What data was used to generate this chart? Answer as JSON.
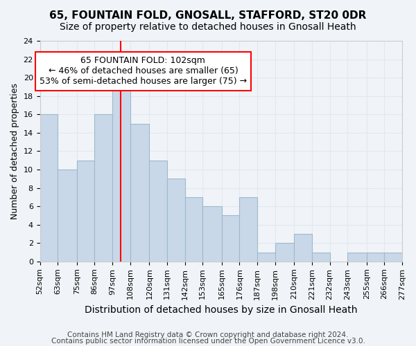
{
  "title": "65, FOUNTAIN FOLD, GNOSALL, STAFFORD, ST20 0DR",
  "subtitle": "Size of property relative to detached houses in Gnosall Heath",
  "xlabel": "Distribution of detached houses by size in Gnosall Heath",
  "ylabel": "Number of detached properties",
  "bin_edges": [
    52,
    63,
    75,
    86,
    97,
    108,
    120,
    131,
    142,
    153,
    165,
    176,
    187,
    198,
    210,
    221,
    232,
    243,
    255,
    266,
    277
  ],
  "bin_labels": [
    "52sqm",
    "63sqm",
    "75sqm",
    "86sqm",
    "97sqm",
    "108sqm",
    "120sqm",
    "131sqm",
    "142sqm",
    "153sqm",
    "165sqm",
    "176sqm",
    "187sqm",
    "198sqm",
    "210sqm",
    "221sqm",
    "232sqm",
    "243sqm",
    "255sqm",
    "266sqm",
    "277sqm"
  ],
  "counts": [
    16,
    10,
    11,
    16,
    20,
    15,
    11,
    9,
    7,
    6,
    5,
    7,
    1,
    2,
    3,
    1,
    0,
    1,
    1,
    1
  ],
  "bar_color": "#c8d8e8",
  "bar_edgecolor": "#a0b8cc",
  "vline_x": 102,
  "vline_color": "red",
  "annotation_title": "65 FOUNTAIN FOLD: 102sqm",
  "annotation_line1": "← 46% of detached houses are smaller (65)",
  "annotation_line2": "53% of semi-detached houses are larger (75) →",
  "annotation_box_color": "white",
  "annotation_box_edgecolor": "red",
  "ylim": [
    0,
    24
  ],
  "yticks": [
    0,
    2,
    4,
    6,
    8,
    10,
    12,
    14,
    16,
    18,
    20,
    22,
    24
  ],
  "footer1": "Contains HM Land Registry data © Crown copyright and database right 2024.",
  "footer2": "Contains public sector information licensed under the Open Government Licence v3.0.",
  "title_fontsize": 11,
  "subtitle_fontsize": 10,
  "xlabel_fontsize": 10,
  "ylabel_fontsize": 9,
  "tick_fontsize": 8,
  "annotation_fontsize": 9,
  "footer_fontsize": 7.5,
  "grid_color": "#e0e8f0",
  "bg_color": "#f0f4f8"
}
